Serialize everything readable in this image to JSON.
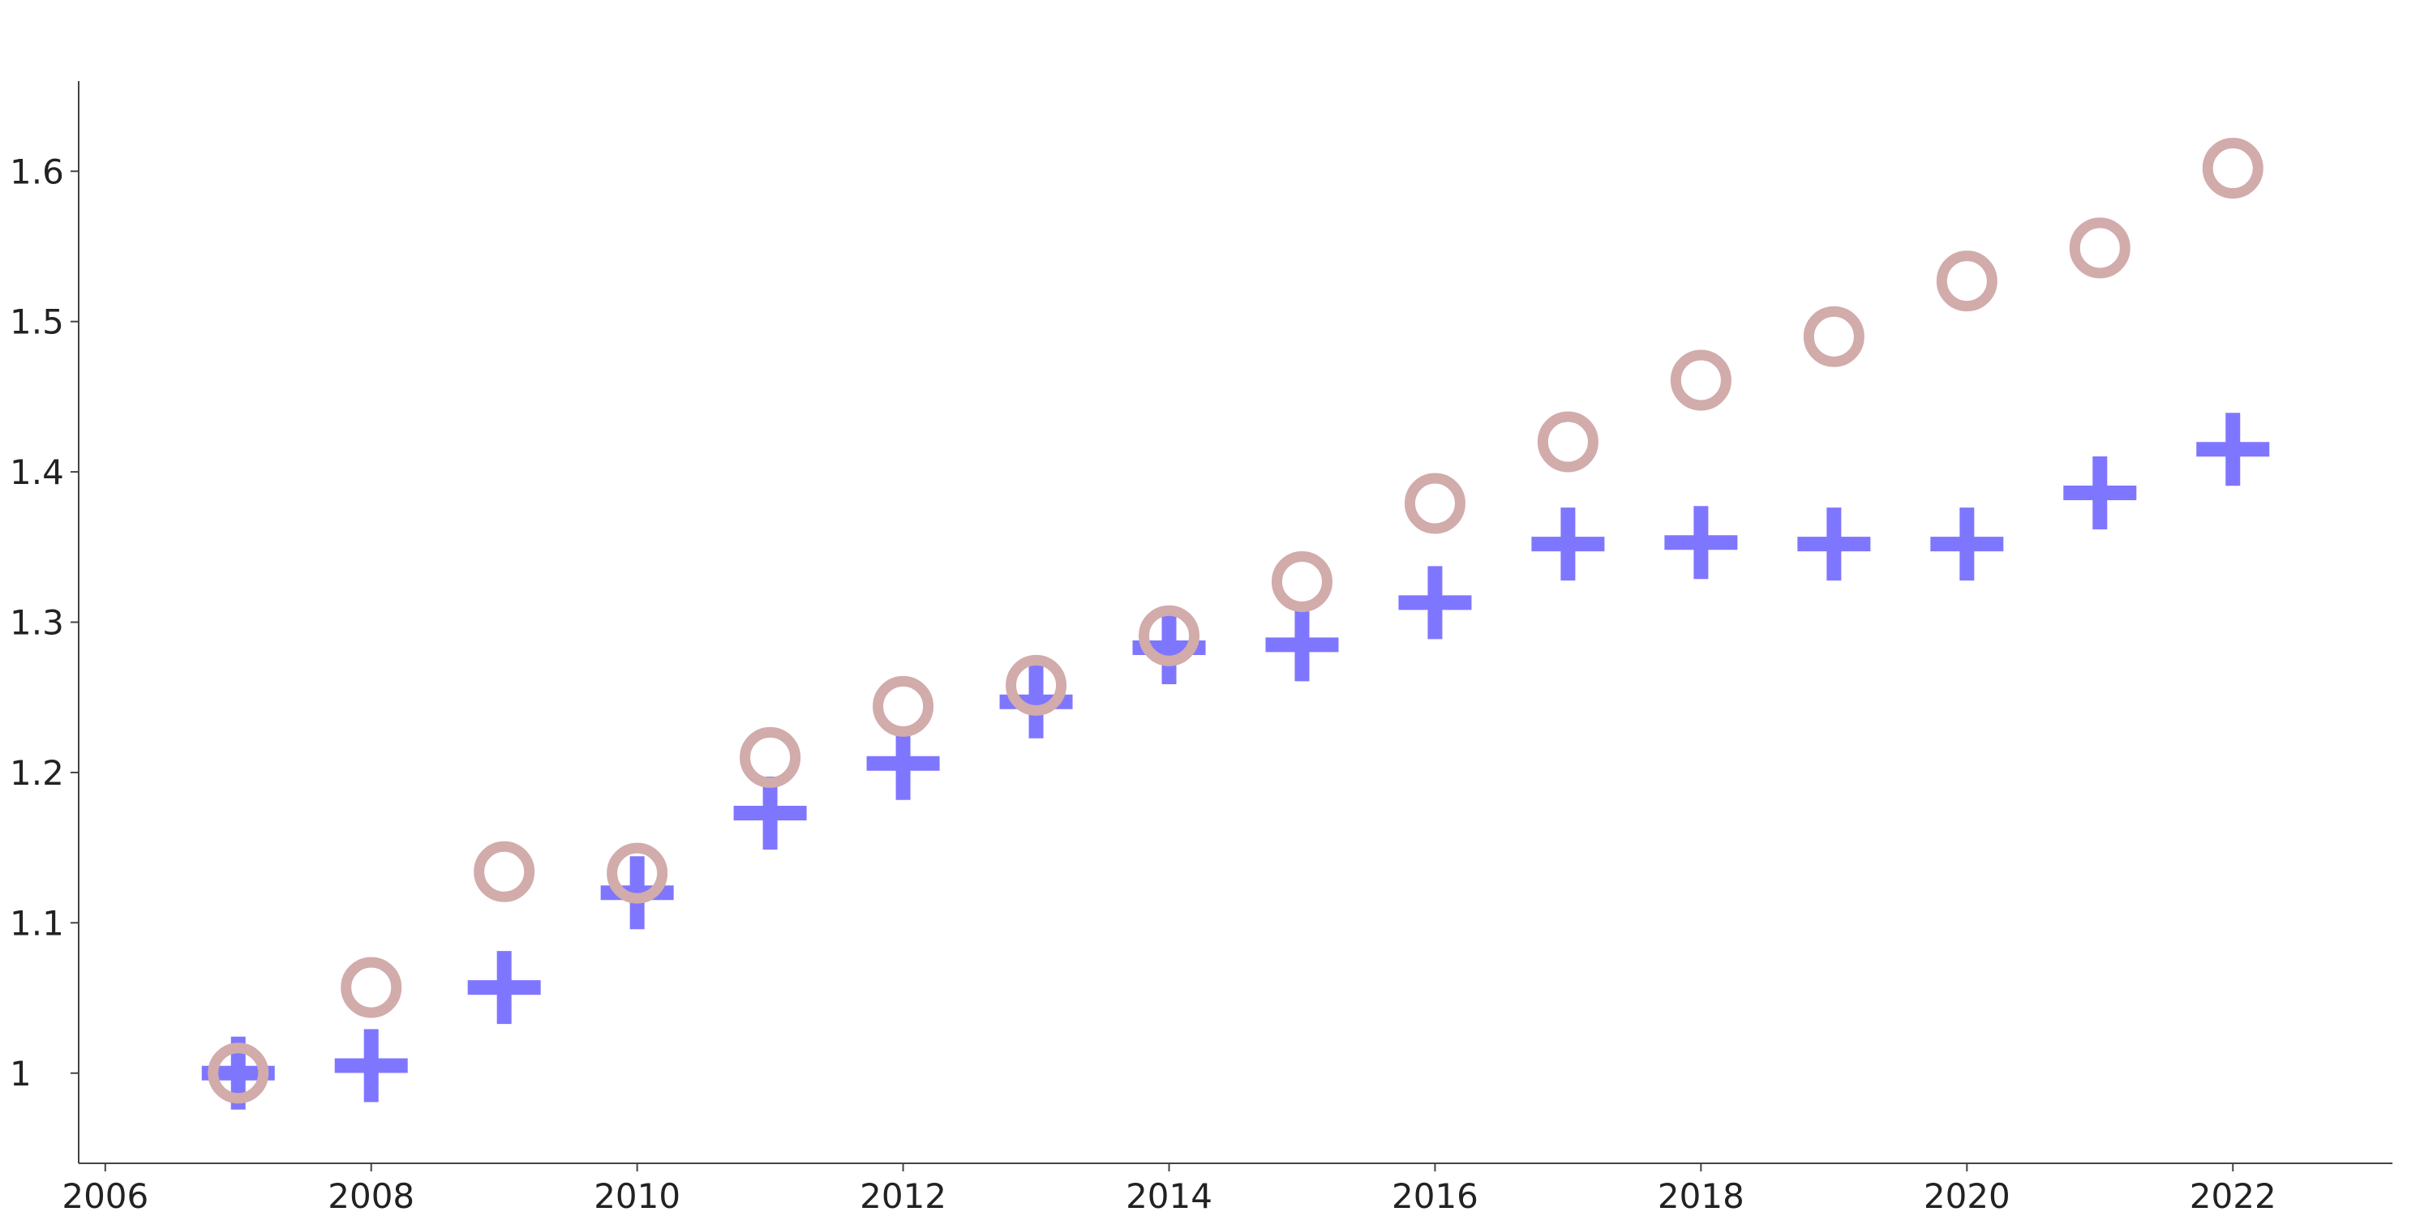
{
  "chart_data": {
    "type": "scatter",
    "title": "",
    "xlabel": "",
    "ylabel": "",
    "xlim": [
      2005.8,
      2023.2
    ],
    "ylim": [
      0.94,
      1.66
    ],
    "x_ticks": [
      2006,
      2008,
      2010,
      2012,
      2014,
      2016,
      2018,
      2020,
      2022
    ],
    "y_ticks": [
      1,
      1.1,
      1.2,
      1.3,
      1.4,
      1.5,
      1.6
    ],
    "grid": false,
    "legend": "none",
    "x": [
      2007,
      2008,
      2009,
      2010,
      2011,
      2012,
      2013,
      2014,
      2015,
      2016,
      2017,
      2018,
      2019,
      2020,
      2021,
      2022
    ],
    "series": [
      {
        "marker": "cross",
        "color": "#7f76ff",
        "values": [
          1.0,
          1.005,
          1.057,
          1.12,
          1.173,
          1.206,
          1.247,
          1.283,
          1.285,
          1.313,
          1.352,
          1.353,
          1.352,
          1.352,
          1.386,
          1.415
        ]
      },
      {
        "marker": "ring",
        "color": "#d2abab",
        "values": [
          1.0,
          1.057,
          1.134,
          1.133,
          1.21,
          1.244,
          1.258,
          1.291,
          1.327,
          1.379,
          1.42,
          1.461,
          1.49,
          1.527,
          1.549,
          1.602
        ]
      }
    ]
  }
}
